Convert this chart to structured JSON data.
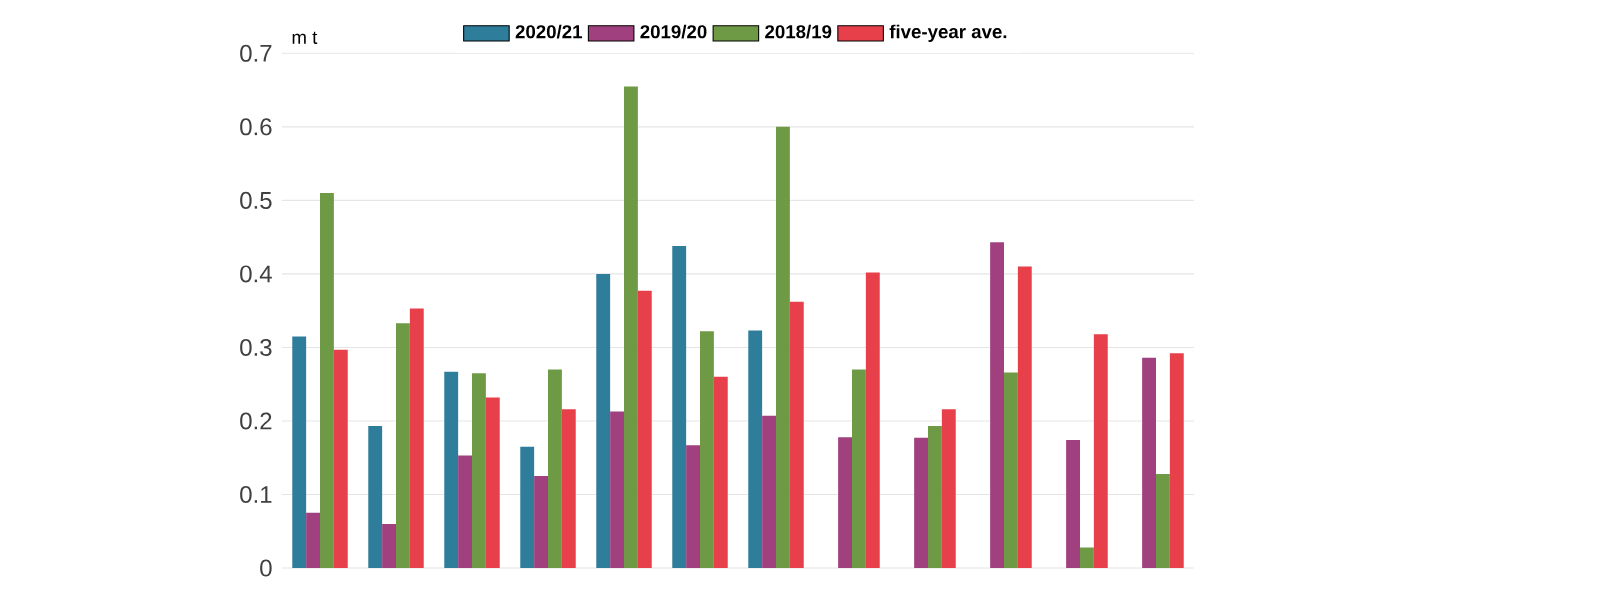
{
  "chart_data": {
    "type": "bar",
    "ylabel": "m t",
    "categories": [
      null,
      null,
      null,
      null,
      null,
      null,
      null,
      null,
      null,
      null,
      null,
      null
    ],
    "series": [
      {
        "name": "2020/21",
        "color": "#2e7d9a",
        "values": [
          0.315,
          0.193,
          0.267,
          0.165,
          0.4,
          0.438,
          0.323,
          null,
          null,
          null,
          null,
          null
        ]
      },
      {
        "name": "2019/20",
        "color": "#a0407f",
        "values": [
          0.075,
          0.06,
          0.153,
          0.125,
          0.213,
          0.167,
          0.207,
          0.178,
          0.177,
          0.443,
          0.174,
          0.286
        ]
      },
      {
        "name": "2018/19",
        "color": "#6f9a45",
        "values": [
          0.51,
          0.333,
          0.265,
          0.27,
          0.655,
          0.322,
          0.6,
          0.27,
          0.193,
          0.266,
          0.028,
          0.128
        ]
      },
      {
        "name": "five-year ave.",
        "color": "#e8404a",
        "values": [
          0.297,
          0.353,
          0.232,
          0.216,
          0.377,
          0.26,
          0.362,
          0.402,
          0.216,
          0.41,
          0.318,
          0.292
        ]
      }
    ],
    "ylim": [
      0,
      0.7
    ],
    "yticks": [
      0,
      0.1,
      0.2,
      0.3,
      0.4,
      0.5,
      0.6,
      0.7
    ],
    "grid": "y",
    "legend": "top"
  }
}
